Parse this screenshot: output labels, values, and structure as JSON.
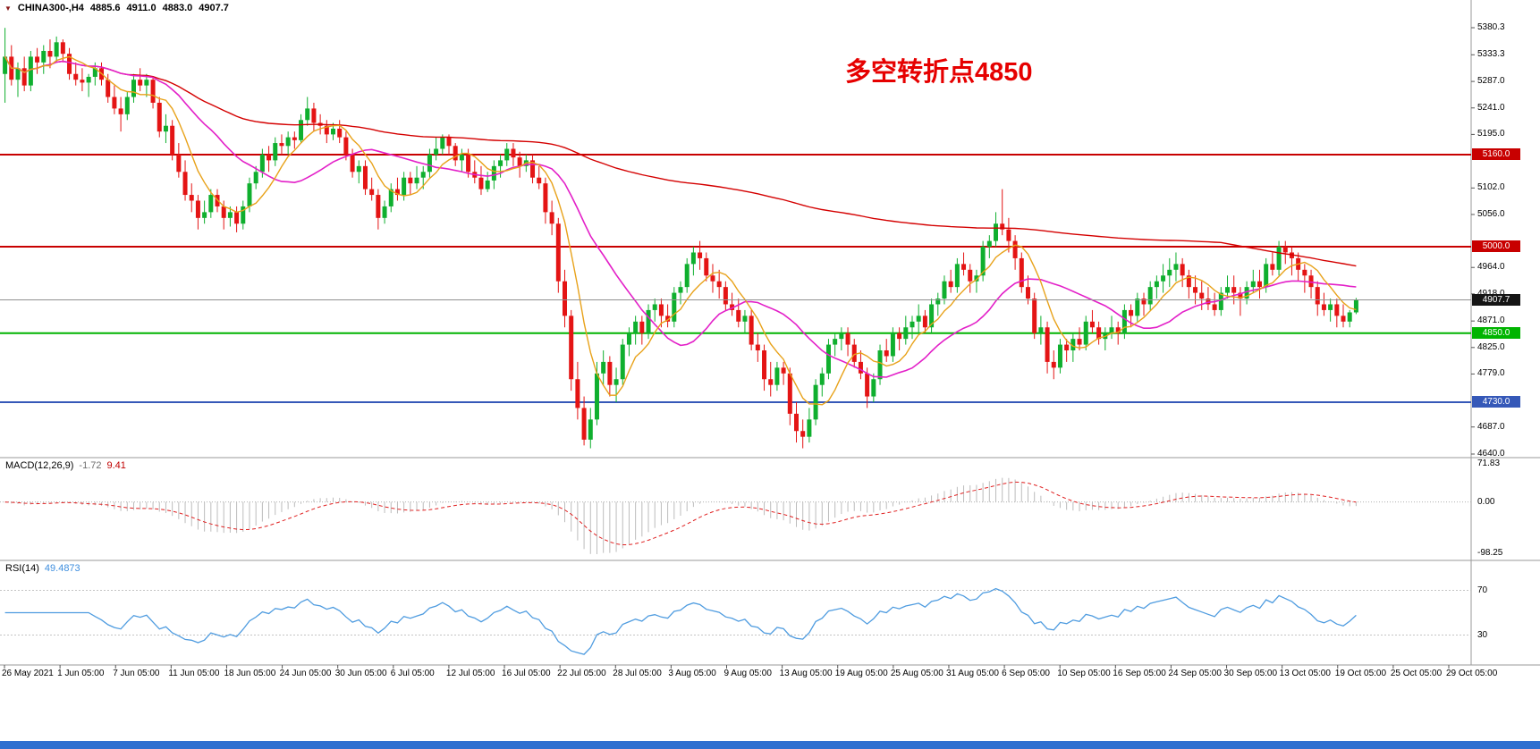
{
  "symbol_bar": {
    "symbol": "CHINA300-,H4",
    "open": "4885.6",
    "high": "4911.0",
    "low": "4883.0",
    "close": "4907.7"
  },
  "annotation": {
    "text": "多空转折点4850",
    "color": "#e60000"
  },
  "quote": {
    "last": "4907.7",
    "price": 4907.7
  },
  "levels": [
    {
      "price": 5160,
      "label": "5160.0",
      "color": "level_red",
      "width": 2
    },
    {
      "price": 5000,
      "label": "5000.0",
      "color": "level_red",
      "width": 2
    },
    {
      "price": 4850,
      "label": "4850.0",
      "color": "level_green",
      "width": 2
    },
    {
      "price": 4730,
      "label": "4730.0",
      "color": "level_blue",
      "width": 2
    }
  ],
  "indicators": {
    "macd": {
      "label": "MACD(12,26,9)",
      "main_value": "-1.72",
      "signal_value": "9.41",
      "axis_labels": [
        "71.83",
        "0.00",
        "-98.25"
      ],
      "axis_max": 71.83,
      "axis_min": -98.25
    },
    "rsi": {
      "label": "RSI(14)",
      "value": "49.4873",
      "level_labels": [
        "70",
        "30"
      ],
      "levels": [
        70,
        30
      ]
    }
  },
  "colors": {
    "up": "#0faf2e",
    "down": "#e41414",
    "ma_fast": "#e8a21a",
    "ma_mid": "#e320c8",
    "ma_slow": "#d40000",
    "macd_hist": "#bcbcbc",
    "macd_signal": "#e02020",
    "rsi": "#4f9ce0",
    "level_red": "#c80000",
    "level_green": "#00b400",
    "level_blue": "#3558b8",
    "quote_line": "#909090",
    "quote_badge": "#151515",
    "separator": "#9a9a9a",
    "bottom_bar": "#2e6fd0"
  },
  "chart_data": {
    "type": "candlestick",
    "symbol": "CHINA300-",
    "timeframe": "H4",
    "title": "CHINA300-,H4",
    "current_ohlc": {
      "open": 4885.6,
      "high": 4911.0,
      "low": 4883.0,
      "close": 4907.7
    },
    "y_range": [
      4640,
      5395
    ],
    "y_ticks": [
      "5380.3",
      "5333.3",
      "5287.0",
      "5241.0",
      "5195.0",
      "5102.0",
      "5056.0",
      "4964.0",
      "4918.0",
      "4871.0",
      "4825.0",
      "4779.0",
      "4687.0",
      "4640.0"
    ],
    "horizontal_lines": [
      5160,
      5000,
      4850,
      4730
    ],
    "x_labels": [
      "26 May 2021",
      "1 Jun 05:00",
      "7 Jun 05:00",
      "11 Jun 05:00",
      "18 Jun 05:00",
      "24 Jun 05:00",
      "30 Jun 05:00",
      "6 Jul 05:00",
      "12 Jul 05:00",
      "16 Jul 05:00",
      "22 Jul 05:00",
      "28 Jul 05:00",
      "3 Aug 05:00",
      "9 Aug 05:00",
      "13 Aug 05:00",
      "19 Aug 05:00",
      "25 Aug 05:00",
      "31 Aug 05:00",
      "6 Sep 05:00",
      "10 Sep 05:00",
      "16 Sep 05:00",
      "24 Sep 05:00",
      "30 Sep 05:00",
      "13 Oct 05:00",
      "19 Oct 05:00",
      "25 Oct 05:00",
      "29 Oct 05:00"
    ],
    "candles": [
      [
        5300,
        5380,
        5250,
        5330
      ],
      [
        5330,
        5350,
        5280,
        5290
      ],
      [
        5290,
        5320,
        5260,
        5310
      ],
      [
        5310,
        5330,
        5270,
        5280
      ],
      [
        5280,
        5340,
        5270,
        5330
      ],
      [
        5330,
        5345,
        5300,
        5320
      ],
      [
        5320,
        5350,
        5300,
        5340
      ],
      [
        5340,
        5360,
        5310,
        5330
      ],
      [
        5330,
        5365,
        5320,
        5355
      ],
      [
        5355,
        5360,
        5320,
        5335
      ],
      [
        5335,
        5345,
        5290,
        5300
      ],
      [
        5300,
        5320,
        5280,
        5290
      ],
      [
        5290,
        5310,
        5270,
        5285
      ],
      [
        5285,
        5300,
        5260,
        5295
      ],
      [
        5295,
        5320,
        5280,
        5310
      ],
      [
        5310,
        5320,
        5280,
        5290
      ],
      [
        5290,
        5300,
        5250,
        5260
      ],
      [
        5260,
        5280,
        5230,
        5240
      ],
      [
        5240,
        5260,
        5200,
        5230
      ],
      [
        5230,
        5270,
        5220,
        5260
      ],
      [
        5260,
        5300,
        5250,
        5290
      ],
      [
        5290,
        5310,
        5270,
        5280
      ],
      [
        5280,
        5300,
        5260,
        5290
      ],
      [
        5290,
        5295,
        5240,
        5250
      ],
      [
        5250,
        5260,
        5190,
        5200
      ],
      [
        5200,
        5230,
        5180,
        5210
      ],
      [
        5210,
        5220,
        5150,
        5160
      ],
      [
        5160,
        5180,
        5120,
        5130
      ],
      [
        5130,
        5150,
        5080,
        5090
      ],
      [
        5090,
        5110,
        5060,
        5080
      ],
      [
        5080,
        5090,
        5030,
        5050
      ],
      [
        5050,
        5080,
        5040,
        5060
      ],
      [
        5060,
        5100,
        5050,
        5090
      ],
      [
        5090,
        5100,
        5060,
        5070
      ],
      [
        5070,
        5080,
        5030,
        5050
      ],
      [
        5050,
        5070,
        5035,
        5060
      ],
      [
        5060,
        5070,
        5025,
        5040
      ],
      [
        5040,
        5080,
        5030,
        5070
      ],
      [
        5070,
        5120,
        5060,
        5110
      ],
      [
        5110,
        5140,
        5100,
        5130
      ],
      [
        5130,
        5170,
        5120,
        5160
      ],
      [
        5160,
        5175,
        5130,
        5150
      ],
      [
        5150,
        5190,
        5140,
        5180
      ],
      [
        5180,
        5195,
        5160,
        5175
      ],
      [
        5175,
        5200,
        5160,
        5190
      ],
      [
        5190,
        5200,
        5170,
        5185
      ],
      [
        5185,
        5230,
        5180,
        5220
      ],
      [
        5220,
        5260,
        5210,
        5240
      ],
      [
        5240,
        5250,
        5200,
        5215
      ],
      [
        5215,
        5230,
        5195,
        5210
      ],
      [
        5210,
        5220,
        5180,
        5195
      ],
      [
        5195,
        5215,
        5185,
        5205
      ],
      [
        5205,
        5220,
        5180,
        5190
      ],
      [
        5190,
        5200,
        5150,
        5160
      ],
      [
        5160,
        5170,
        5120,
        5130
      ],
      [
        5130,
        5150,
        5110,
        5140
      ],
      [
        5140,
        5150,
        5090,
        5100
      ],
      [
        5100,
        5120,
        5080,
        5090
      ],
      [
        5090,
        5100,
        5030,
        5050
      ],
      [
        5050,
        5080,
        5040,
        5070
      ],
      [
        5070,
        5110,
        5060,
        5100
      ],
      [
        5100,
        5120,
        5080,
        5090
      ],
      [
        5090,
        5130,
        5080,
        5120
      ],
      [
        5120,
        5130,
        5090,
        5110
      ],
      [
        5110,
        5140,
        5100,
        5120
      ],
      [
        5120,
        5140,
        5100,
        5130
      ],
      [
        5130,
        5170,
        5120,
        5160
      ],
      [
        5160,
        5190,
        5150,
        5170
      ],
      [
        5170,
        5195,
        5160,
        5190
      ],
      [
        5190,
        5195,
        5160,
        5175
      ],
      [
        5175,
        5180,
        5140,
        5150
      ],
      [
        5150,
        5170,
        5130,
        5160
      ],
      [
        5160,
        5170,
        5120,
        5130
      ],
      [
        5130,
        5150,
        5110,
        5120
      ],
      [
        5120,
        5140,
        5090,
        5100
      ],
      [
        5100,
        5130,
        5095,
        5115
      ],
      [
        5115,
        5150,
        5100,
        5140
      ],
      [
        5140,
        5160,
        5120,
        5150
      ],
      [
        5150,
        5180,
        5140,
        5170
      ],
      [
        5170,
        5180,
        5140,
        5155
      ],
      [
        5155,
        5165,
        5120,
        5140
      ],
      [
        5140,
        5160,
        5130,
        5150
      ],
      [
        5150,
        5160,
        5110,
        5120
      ],
      [
        5120,
        5140,
        5100,
        5110
      ],
      [
        5110,
        5120,
        5040,
        5060
      ],
      [
        5060,
        5080,
        5020,
        5040
      ],
      [
        5040,
        5050,
        4920,
        4940
      ],
      [
        4940,
        4960,
        4860,
        4880
      ],
      [
        4880,
        4890,
        4750,
        4770
      ],
      [
        4770,
        4800,
        4700,
        4720
      ],
      [
        4720,
        4740,
        4655,
        4665
      ],
      [
        4665,
        4720,
        4650,
        4700
      ],
      [
        4700,
        4800,
        4690,
        4780
      ],
      [
        4780,
        4820,
        4760,
        4800
      ],
      [
        4800,
        4810,
        4740,
        4760
      ],
      [
        4760,
        4790,
        4730,
        4770
      ],
      [
        4770,
        4840,
        4760,
        4830
      ],
      [
        4830,
        4860,
        4810,
        4850
      ],
      [
        4850,
        4880,
        4830,
        4870
      ],
      [
        4870,
        4880,
        4830,
        4850
      ],
      [
        4850,
        4900,
        4840,
        4890
      ],
      [
        4890,
        4910,
        4870,
        4900
      ],
      [
        4900,
        4910,
        4860,
        4880
      ],
      [
        4880,
        4900,
        4860,
        4870
      ],
      [
        4870,
        4930,
        4860,
        4920
      ],
      [
        4920,
        4940,
        4900,
        4930
      ],
      [
        4930,
        4980,
        4920,
        4970
      ],
      [
        4970,
        5000,
        4950,
        4990
      ],
      [
        4990,
        5010,
        4960,
        4980
      ],
      [
        4980,
        4990,
        4940,
        4950
      ],
      [
        4950,
        4970,
        4920,
        4940
      ],
      [
        4940,
        4960,
        4910,
        4930
      ],
      [
        4930,
        4940,
        4890,
        4900
      ],
      [
        4900,
        4920,
        4880,
        4890
      ],
      [
        4890,
        4910,
        4860,
        4870
      ],
      [
        4870,
        4890,
        4850,
        4880
      ],
      [
        4880,
        4890,
        4820,
        4830
      ],
      [
        4830,
        4850,
        4800,
        4820
      ],
      [
        4820,
        4830,
        4750,
        4770
      ],
      [
        4770,
        4800,
        4740,
        4760
      ],
      [
        4760,
        4800,
        4750,
        4790
      ],
      [
        4790,
        4800,
        4760,
        4780
      ],
      [
        4780,
        4790,
        4690,
        4710
      ],
      [
        4710,
        4730,
        4660,
        4680
      ],
      [
        4680,
        4700,
        4650,
        4670
      ],
      [
        4670,
        4720,
        4660,
        4700
      ],
      [
        4700,
        4770,
        4690,
        4760
      ],
      [
        4760,
        4790,
        4740,
        4780
      ],
      [
        4780,
        4840,
        4770,
        4830
      ],
      [
        4830,
        4850,
        4810,
        4840
      ],
      [
        4840,
        4860,
        4820,
        4850
      ],
      [
        4850,
        4860,
        4810,
        4830
      ],
      [
        4830,
        4840,
        4790,
        4800
      ],
      [
        4800,
        4820,
        4770,
        4780
      ],
      [
        4780,
        4790,
        4720,
        4740
      ],
      [
        4740,
        4780,
        4730,
        4770
      ],
      [
        4770,
        4830,
        4760,
        4820
      ],
      [
        4820,
        4840,
        4800,
        4810
      ],
      [
        4810,
        4860,
        4800,
        4850
      ],
      [
        4850,
        4860,
        4820,
        4840
      ],
      [
        4840,
        4880,
        4830,
        4860
      ],
      [
        4860,
        4880,
        4840,
        4870
      ],
      [
        4870,
        4900,
        4850,
        4880
      ],
      [
        4880,
        4890,
        4850,
        4860
      ],
      [
        4860,
        4910,
        4850,
        4900
      ],
      [
        4900,
        4920,
        4880,
        4910
      ],
      [
        4910,
        4950,
        4900,
        4940
      ],
      [
        4940,
        4960,
        4920,
        4930
      ],
      [
        4930,
        4980,
        4920,
        4970
      ],
      [
        4970,
        4990,
        4950,
        4960
      ],
      [
        4960,
        4970,
        4920,
        4940
      ],
      [
        4940,
        4960,
        4920,
        4950
      ],
      [
        4950,
        5010,
        4940,
        5000
      ],
      [
        5000,
        5020,
        4980,
        5010
      ],
      [
        5010,
        5060,
        5000,
        5040
      ],
      [
        5040,
        5100,
        5020,
        5030
      ],
      [
        5030,
        5050,
        4990,
        5010
      ],
      [
        5010,
        5020,
        4960,
        4980
      ],
      [
        4980,
        4990,
        4920,
        4930
      ],
      [
        4930,
        4950,
        4900,
        4910
      ],
      [
        4910,
        4920,
        4840,
        4850
      ],
      [
        4850,
        4880,
        4830,
        4860
      ],
      [
        4860,
        4870,
        4780,
        4800
      ],
      [
        4800,
        4820,
        4770,
        4790
      ],
      [
        4790,
        4840,
        4780,
        4830
      ],
      [
        4830,
        4840,
        4800,
        4820
      ],
      [
        4820,
        4850,
        4800,
        4840
      ],
      [
        4840,
        4860,
        4820,
        4830
      ],
      [
        4830,
        4880,
        4820,
        4870
      ],
      [
        4870,
        4890,
        4850,
        4860
      ],
      [
        4860,
        4870,
        4830,
        4840
      ],
      [
        4840,
        4860,
        4820,
        4850
      ],
      [
        4850,
        4880,
        4840,
        4860
      ],
      [
        4860,
        4870,
        4830,
        4850
      ],
      [
        4850,
        4900,
        4840,
        4890
      ],
      [
        4890,
        4900,
        4860,
        4880
      ],
      [
        4880,
        4920,
        4870,
        4910
      ],
      [
        4910,
        4920,
        4880,
        4900
      ],
      [
        4900,
        4940,
        4890,
        4930
      ],
      [
        4930,
        4950,
        4910,
        4940
      ],
      [
        4940,
        4970,
        4920,
        4950
      ],
      [
        4950,
        4980,
        4930,
        4960
      ],
      [
        4960,
        4990,
        4940,
        4970
      ],
      [
        4970,
        4980,
        4930,
        4950
      ],
      [
        4950,
        4960,
        4910,
        4930
      ],
      [
        4930,
        4950,
        4900,
        4920
      ],
      [
        4920,
        4940,
        4890,
        4910
      ],
      [
        4910,
        4930,
        4890,
        4900
      ],
      [
        4900,
        4920,
        4880,
        4890
      ],
      [
        4890,
        4930,
        4880,
        4920
      ],
      [
        4920,
        4950,
        4910,
        4930
      ],
      [
        4930,
        4950,
        4900,
        4920
      ],
      [
        4920,
        4930,
        4880,
        4910
      ],
      [
        4910,
        4940,
        4900,
        4930
      ],
      [
        4930,
        4960,
        4920,
        4940
      ],
      [
        4940,
        4960,
        4910,
        4930
      ],
      [
        4930,
        4980,
        4920,
        4970
      ],
      [
        4970,
        4990,
        4950,
        4960
      ],
      [
        4960,
        5010,
        4950,
        5000
      ],
      [
        5000,
        5010,
        4970,
        4990
      ],
      [
        4990,
        5000,
        4950,
        4980
      ],
      [
        4980,
        4990,
        4940,
        4960
      ],
      [
        4960,
        4970,
        4920,
        4950
      ],
      [
        4950,
        4960,
        4910,
        4930
      ],
      [
        4930,
        4940,
        4880,
        4900
      ],
      [
        4900,
        4920,
        4880,
        4890
      ],
      [
        4890,
        4910,
        4870,
        4900
      ],
      [
        4900,
        4910,
        4860,
        4880
      ],
      [
        4880,
        4900,
        4860,
        4870
      ],
      [
        4870,
        4890,
        4860,
        4886
      ],
      [
        4886,
        4911,
        4883,
        4908
      ]
    ],
    "moving_average_periods": {
      "fast_orange": 7,
      "mid_magenta": 20,
      "slow_red": 190
    }
  }
}
